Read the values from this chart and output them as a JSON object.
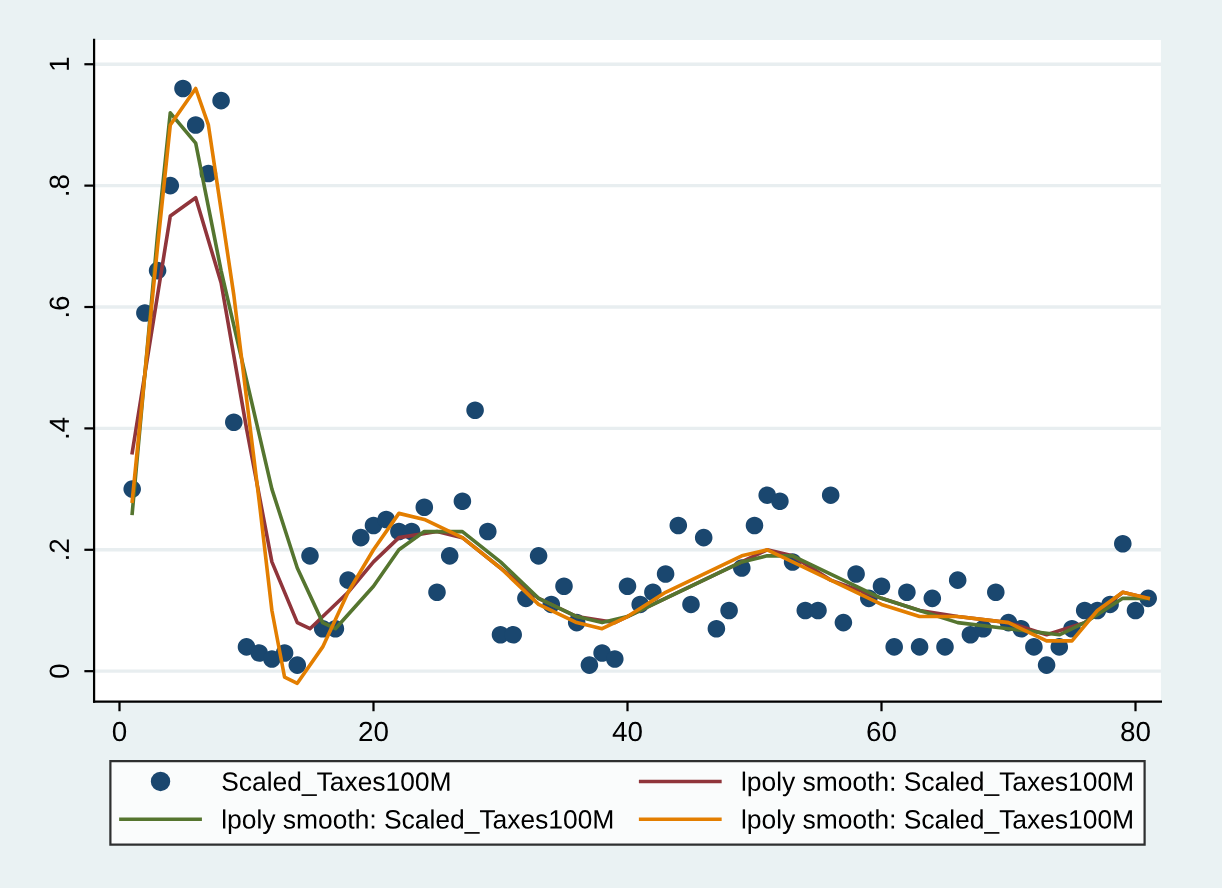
{
  "chart_data": {
    "type": "scatter",
    "xlim": [
      -2,
      82
    ],
    "xticks": [
      0,
      20,
      40,
      60,
      80
    ],
    "ylim": [
      -0.05,
      1.04
    ],
    "yticks": [
      {
        "value": 0,
        "label": "0"
      },
      {
        "value": 0.2,
        "label": ".2"
      },
      {
        "value": 0.4,
        "label": ".4"
      },
      {
        "value": 0.6,
        "label": ".6"
      },
      {
        "value": 0.8,
        "label": ".8"
      },
      {
        "value": 1,
        "label": "1"
      }
    ],
    "grid": "y",
    "legend": "bottom",
    "series": [
      {
        "name": "Scaled_Taxes100M",
        "marker": "circle",
        "color": "#1a476f",
        "x": [
          1,
          2,
          3,
          4,
          5,
          6,
          7,
          8,
          9,
          10,
          11,
          12,
          13,
          14,
          15,
          16,
          17,
          18,
          19,
          20,
          21,
          22,
          23,
          24,
          25,
          26,
          27,
          28,
          29,
          30,
          31,
          32,
          33,
          34,
          35,
          36,
          37,
          38,
          39,
          40,
          41,
          42,
          43,
          44,
          45,
          46,
          47,
          48,
          49,
          50,
          51,
          52,
          53,
          54,
          55,
          56,
          57,
          58,
          59,
          60,
          61,
          62,
          63,
          64,
          65,
          66,
          67,
          68,
          69,
          70,
          71,
          72,
          73,
          74,
          75,
          76,
          77,
          78,
          79,
          80,
          81
        ],
        "values": [
          0.3,
          0.59,
          0.66,
          0.8,
          0.96,
          0.9,
          0.82,
          0.94,
          0.41,
          0.04,
          0.03,
          0.02,
          0.03,
          0.01,
          0.19,
          0.07,
          0.07,
          0.15,
          0.22,
          0.24,
          0.25,
          0.23,
          0.23,
          0.27,
          0.13,
          0.19,
          0.28,
          0.43,
          0.23,
          0.06,
          0.06,
          0.12,
          0.19,
          0.11,
          0.14,
          0.08,
          0.01,
          0.03,
          0.02,
          0.14,
          0.11,
          0.13,
          0.16,
          0.24,
          0.11,
          0.22,
          0.07,
          0.1,
          0.17,
          0.24,
          0.29,
          0.28,
          0.18,
          0.1,
          0.1,
          0.29,
          0.08,
          0.16,
          0.12,
          0.14,
          0.04,
          0.13,
          0.04,
          0.12,
          0.04,
          0.15,
          0.06,
          0.07,
          0.13,
          0.08,
          0.07,
          0.04,
          0.01,
          0.04,
          0.07,
          0.1,
          0.1,
          0.11,
          0.21,
          0.1,
          0.12
        ]
      },
      {
        "name": "lpoly smooth: Scaled_Taxes100M",
        "type": "line",
        "color": "#90353b",
        "x": [
          1,
          4,
          6,
          8,
          10,
          12,
          14,
          15,
          18,
          20,
          22,
          25,
          27,
          30,
          33,
          36,
          39,
          42,
          45,
          48,
          51,
          53,
          56,
          60,
          63,
          66,
          70,
          73,
          76,
          79,
          81
        ],
        "values": [
          0.36,
          0.75,
          0.78,
          0.64,
          0.4,
          0.18,
          0.08,
          0.07,
          0.13,
          0.18,
          0.22,
          0.23,
          0.22,
          0.17,
          0.12,
          0.09,
          0.08,
          0.11,
          0.14,
          0.17,
          0.2,
          0.19,
          0.15,
          0.12,
          0.1,
          0.09,
          0.08,
          0.06,
          0.08,
          0.13,
          0.12
        ]
      },
      {
        "name": "lpoly smooth: Scaled_Taxes100M",
        "type": "line",
        "color": "#55752f",
        "x": [
          1,
          3,
          4,
          6,
          8,
          10,
          12,
          14,
          16,
          17,
          20,
          22,
          24,
          27,
          30,
          33,
          36,
          38,
          40,
          43,
          46,
          49,
          51,
          53,
          56,
          60,
          63,
          66,
          70,
          74,
          76,
          79,
          81
        ],
        "values": [
          0.26,
          0.72,
          0.92,
          0.87,
          0.66,
          0.48,
          0.3,
          0.17,
          0.08,
          0.07,
          0.14,
          0.2,
          0.23,
          0.23,
          0.18,
          0.12,
          0.09,
          0.08,
          0.09,
          0.12,
          0.15,
          0.18,
          0.19,
          0.19,
          0.16,
          0.12,
          0.1,
          0.08,
          0.07,
          0.06,
          0.08,
          0.12,
          0.12
        ]
      },
      {
        "name": "lpoly smooth: Scaled_Taxes100M",
        "type": "line",
        "color": "#e37e00",
        "x": [
          1,
          3,
          4,
          6,
          7,
          9,
          11,
          12,
          13,
          14,
          16,
          18,
          20,
          22,
          24,
          27,
          30,
          33,
          36,
          38,
          40,
          43,
          46,
          49,
          51,
          53,
          56,
          60,
          63,
          66,
          70,
          73,
          75,
          77,
          79,
          81
        ],
        "values": [
          0.28,
          0.7,
          0.9,
          0.96,
          0.9,
          0.62,
          0.28,
          0.1,
          -0.01,
          -0.02,
          0.04,
          0.13,
          0.2,
          0.26,
          0.25,
          0.22,
          0.17,
          0.11,
          0.08,
          0.07,
          0.09,
          0.13,
          0.16,
          0.19,
          0.2,
          0.18,
          0.15,
          0.11,
          0.09,
          0.09,
          0.08,
          0.05,
          0.05,
          0.1,
          0.13,
          0.12
        ]
      }
    ]
  }
}
